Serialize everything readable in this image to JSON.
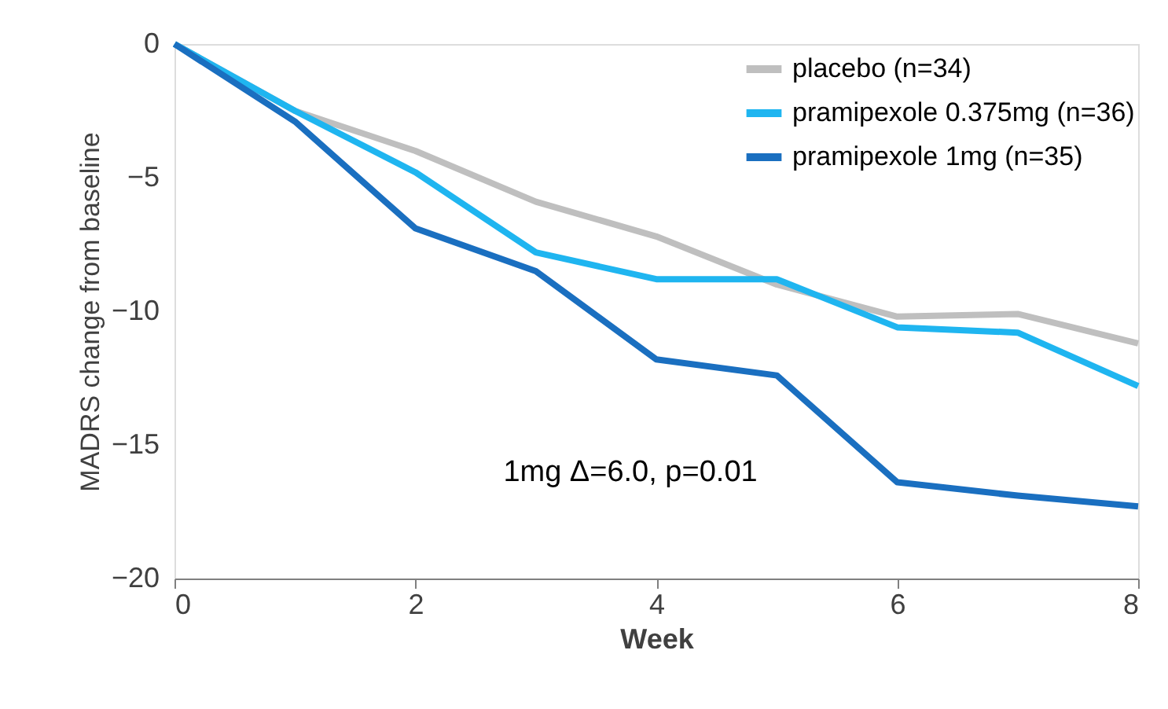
{
  "chart_data": {
    "type": "line",
    "xlabel": "Week",
    "ylabel": "MADRS change from baseline",
    "x": [
      0,
      1,
      2,
      3,
      4,
      5,
      6,
      7,
      8
    ],
    "series": [
      {
        "name": "placebo (n=34)",
        "color": "#bfbfbf",
        "values": [
          0,
          -2.5,
          -4.0,
          -5.9,
          -7.2,
          -9.0,
          -10.2,
          -10.1,
          -11.2
        ]
      },
      {
        "name": "pramipexole 0.375mg (n=36)",
        "color": "#1fb5f0",
        "values": [
          0,
          -2.5,
          -4.8,
          -7.8,
          -8.8,
          -8.8,
          -10.6,
          -10.8,
          -12.8
        ]
      },
      {
        "name": "pramipexole 1mg (n=35)",
        "color": "#1a6fc0",
        "values": [
          0,
          -2.9,
          -6.9,
          -8.5,
          -11.8,
          -12.4,
          -16.4,
          -16.9,
          -17.3
        ]
      }
    ],
    "xlim": [
      0,
      8
    ],
    "xticks": [
      0,
      2,
      4,
      6,
      8
    ],
    "ylim": [
      -20,
      0
    ],
    "yticks": [
      -20,
      -15,
      -10,
      -5,
      0
    ],
    "annotations": [
      "1mg Δ=6.0, p=0.01"
    ],
    "legend": "top right",
    "grid": false,
    "marker": "none",
    "line_style": "solid"
  }
}
